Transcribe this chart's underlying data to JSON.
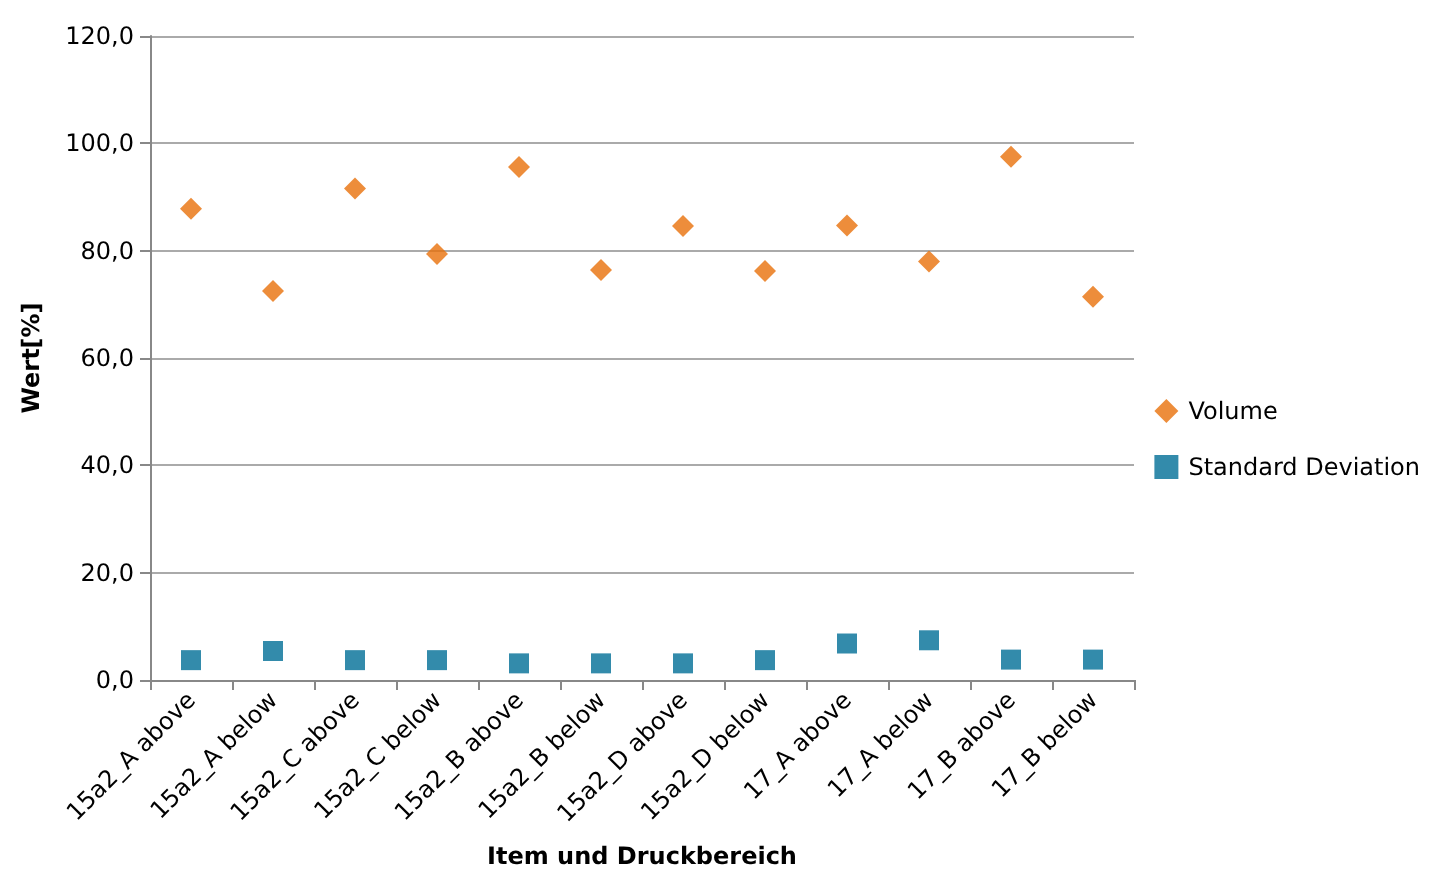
{
  "chart_data": {
    "type": "scatter",
    "xlabel": "Item und Druckbereich",
    "ylabel": "Wert[%]",
    "categories": [
      "15a2_A above",
      "15a2_A below",
      "15a2_C above",
      "15a2_C below",
      "15a2_B above",
      "15a2_B below",
      "15a2_D above",
      "15a2_D below",
      "17_A above",
      "17_A below",
      "17_B above",
      "17_B below"
    ],
    "series": [
      {
        "name": "Volume",
        "color": "#e8710a",
        "marker": "diamond",
        "values": [
          87.8,
          72.5,
          91.6,
          79.4,
          95.6,
          76.4,
          84.6,
          76.2,
          84.7,
          78.0,
          97.5,
          71.4
        ]
      },
      {
        "name": "Standard Deviation",
        "color": "#006e96",
        "marker": "square",
        "values": [
          3.7,
          5.4,
          3.7,
          3.7,
          3.1,
          3.1,
          3.1,
          3.7,
          6.8,
          7.4,
          3.8,
          3.8
        ]
      }
    ],
    "ylim": [
      0,
      120
    ],
    "yticks": [
      {
        "value": 0,
        "label": "0,0"
      },
      {
        "value": 20,
        "label": "20,0"
      },
      {
        "value": 40,
        "label": "40,0"
      },
      {
        "value": 60,
        "label": "60,0"
      },
      {
        "value": 80,
        "label": "80,0"
      },
      {
        "value": 100,
        "label": "100,0"
      },
      {
        "value": 120,
        "label": "120,0"
      }
    ],
    "grid": "y",
    "legend": "right"
  }
}
